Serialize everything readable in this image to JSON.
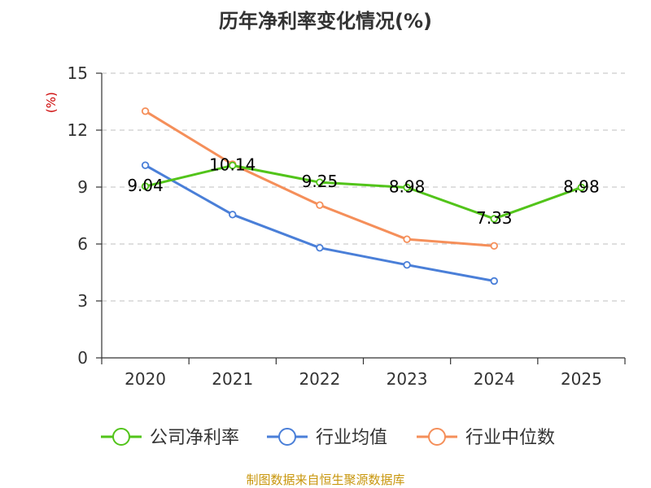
{
  "chart_data": {
    "type": "line",
    "title": "历年净利率变化情况(%)",
    "ylabel": "(%)",
    "xlabel": "",
    "categories": [
      "2020",
      "2021",
      "2022",
      "2023",
      "2024",
      "2025"
    ],
    "ylim": [
      0,
      15
    ],
    "yticks": [
      0,
      3,
      6,
      9,
      12,
      15
    ],
    "grid": true,
    "legend_position": "bottom",
    "series": [
      {
        "name": "公司净利率",
        "color": "#52c41a",
        "values": [
          9.04,
          10.14,
          9.25,
          8.98,
          7.33,
          8.98
        ],
        "show_labels": true
      },
      {
        "name": "行业均值",
        "color": "#4a7fd8",
        "values": [
          10.15,
          7.55,
          5.8,
          4.9,
          4.05,
          null
        ],
        "show_labels": false
      },
      {
        "name": "行业中位数",
        "color": "#f58f5a",
        "values": [
          13.0,
          10.2,
          8.05,
          6.25,
          5.9,
          null
        ],
        "show_labels": false
      }
    ],
    "unit_color": "#cc0000",
    "source_color": "#c8960c"
  },
  "footer": {
    "source": "制图数据来自恒生聚源数据库"
  }
}
